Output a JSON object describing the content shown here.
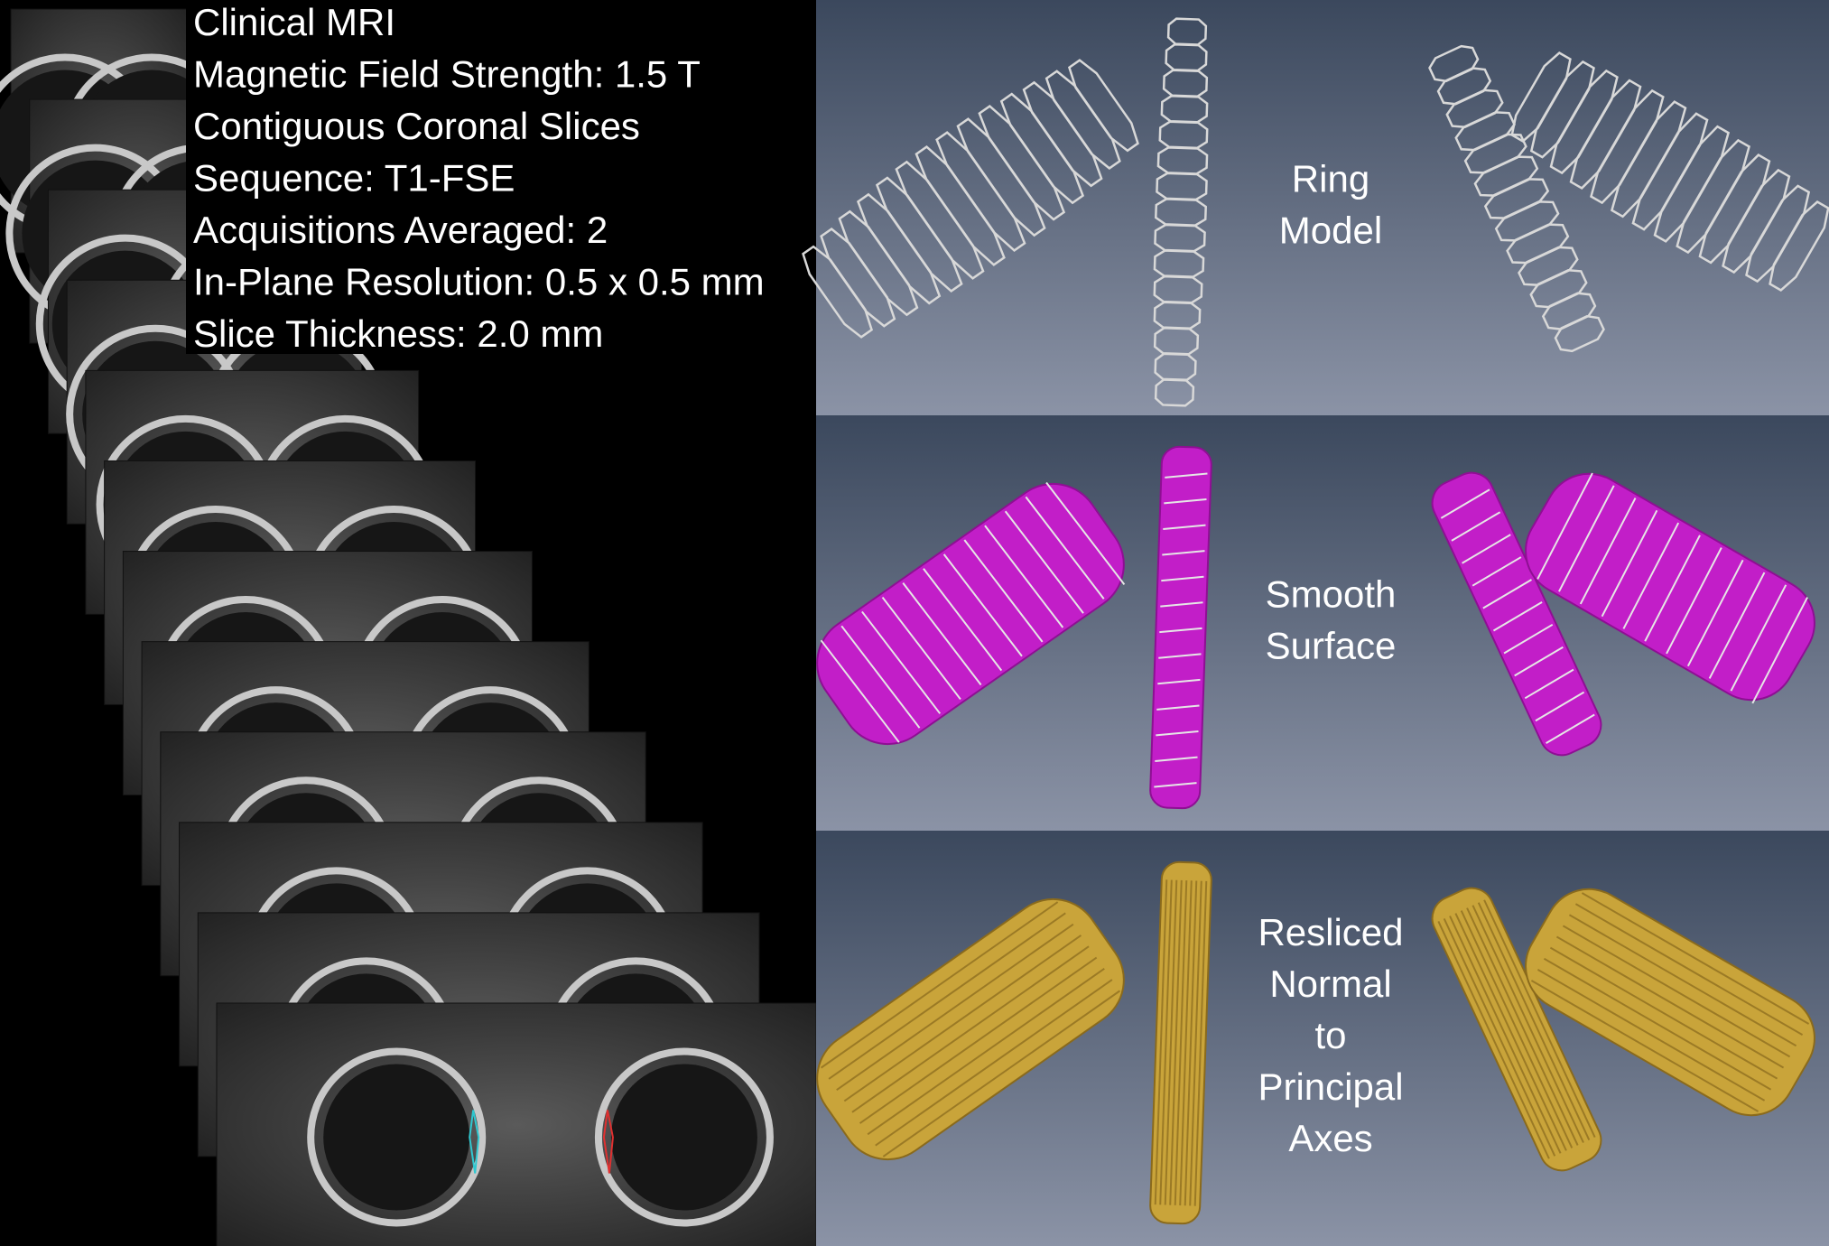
{
  "info_lines": [
    "Clinical MRI",
    "Magnetic Field Strength: 1.5 T",
    "Contiguous Coronal Slices",
    "Sequence: T1-FSE",
    "Acquisitions Averaged: 2",
    "In-Plane Resolution: 0.5 x 0.5 mm",
    "Slice Thickness: 2.0 mm"
  ],
  "panels": [
    {
      "label_lines": [
        "Ring",
        "Model"
      ]
    },
    {
      "label_lines": [
        "Smooth",
        "Surface"
      ]
    },
    {
      "label_lines": [
        "Resliced",
        "Normal",
        "to",
        "Principal",
        "Axes"
      ]
    }
  ]
}
